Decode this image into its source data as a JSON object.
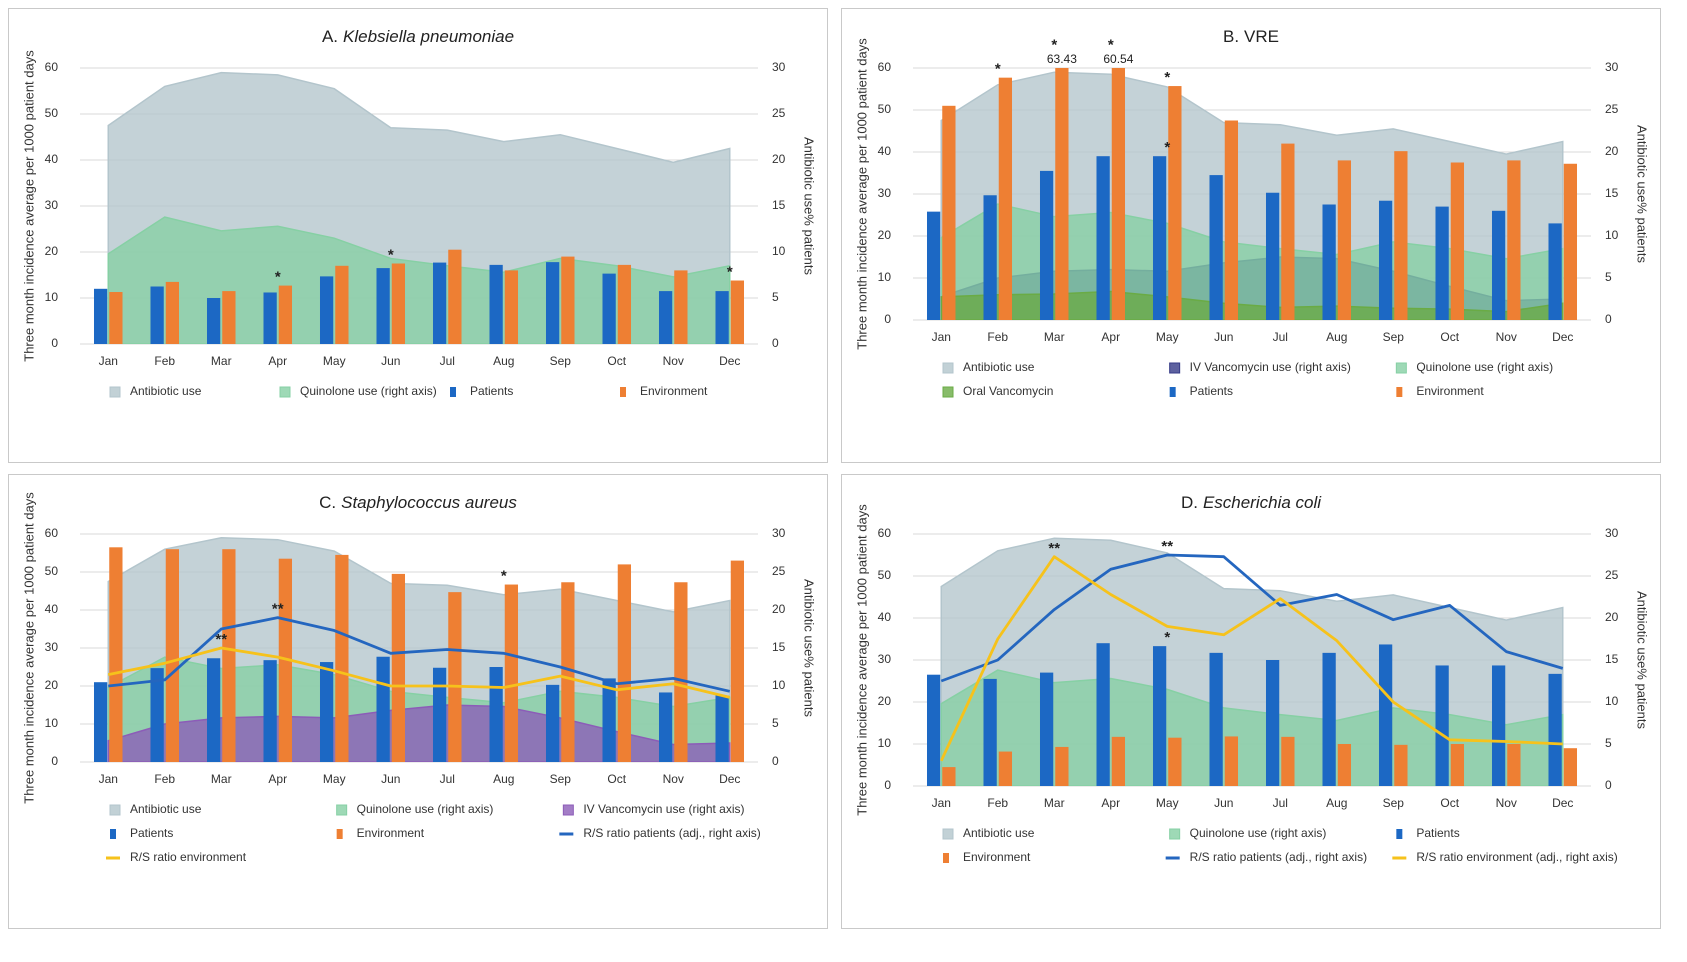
{
  "chart_data": [
    {
      "type": "combo",
      "panel": "A.",
      "title": "Klebsiella pneumoniae",
      "title_italic": true,
      "y_label": "Three month incidence average per 1000 patient days",
      "y2_label": "Antibiotic use% patients",
      "categories": [
        "Jan",
        "Feb",
        "Mar",
        "Apr",
        "May",
        "Jun",
        "Jul",
        "Aug",
        "Sep",
        "Oct",
        "Nov",
        "Dec"
      ],
      "ylim": [
        0,
        60
      ],
      "yticks": [
        0,
        10,
        20,
        30,
        40,
        50,
        60
      ],
      "y2lim": [
        0,
        30
      ],
      "y2ticks": [
        0,
        5,
        10,
        15,
        20,
        25,
        30
      ],
      "grid": true,
      "series": [
        {
          "name": "Antibiotic use",
          "type": "area",
          "color": "#b3c5cc",
          "values": [
            47.5,
            56,
            59,
            58.5,
            55.5,
            47,
            46.5,
            44,
            45.5,
            42.5,
            39.5,
            42.5
          ]
        },
        {
          "name": "Quinolone use (right axis)",
          "type": "area",
          "axis": "y2",
          "color": "#86d0a4",
          "values": [
            9.8,
            13.8,
            12.3,
            12.8,
            11.5,
            9.3,
            8.5,
            7.8,
            9.3,
            8.5,
            7.3,
            8.5
          ]
        },
        {
          "name": "Patients",
          "type": "bar",
          "color": "#1c68c4",
          "values": [
            12,
            12.5,
            10,
            11.2,
            14.7,
            16.5,
            17.7,
            17.2,
            17.8,
            15.3,
            11.5,
            11.5
          ]
        },
        {
          "name": "Environment",
          "type": "bar",
          "color": "#ee7f33",
          "values": [
            11.3,
            13.5,
            11.5,
            12.7,
            17,
            17.5,
            20.5,
            16,
            19,
            17.2,
            16,
            13.8
          ]
        }
      ],
      "annotations": [
        {
          "text": "*",
          "x": "Apr",
          "y": 12.7
        },
        {
          "text": "*",
          "x": "Jun",
          "y": 17.5
        },
        {
          "text": "*",
          "x": "Dec",
          "y": 13.8
        }
      ]
    },
    {
      "type": "combo",
      "panel": "B.",
      "title": "VRE",
      "title_italic": false,
      "y_label": "Three month incidence average per 1000 patient days",
      "y2_label": "Antibiotic use% patients",
      "categories": [
        "Jan",
        "Feb",
        "Mar",
        "Apr",
        "May",
        "Jun",
        "Jul",
        "Aug",
        "Sep",
        "Oct",
        "Nov",
        "Dec"
      ],
      "ylim": [
        0,
        60
      ],
      "yticks": [
        0,
        10,
        20,
        30,
        40,
        50,
        60
      ],
      "y2lim": [
        0,
        30
      ],
      "y2ticks": [
        0,
        5,
        10,
        15,
        20,
        25,
        30
      ],
      "grid": true,
      "series": [
        {
          "name": "Antibiotic use",
          "type": "area",
          "color": "#b3c5cc",
          "values": [
            47.5,
            56,
            59,
            58.5,
            55.5,
            47,
            46.5,
            44,
            45.5,
            42.5,
            39.5,
            42.5
          ]
        },
        {
          "name": "IV Vancomycin use (right axis)",
          "type": "area",
          "axis": "y2",
          "color": "#353a87",
          "values": [
            2.8,
            5,
            5.8,
            6,
            5.8,
            6.8,
            7.5,
            7.3,
            5.8,
            4,
            2.3,
            2.5
          ]
        },
        {
          "name": "Quinolone use (right axis)",
          "type": "area",
          "axis": "y2",
          "color": "#86d0a4",
          "values": [
            9.8,
            13.8,
            12.3,
            12.8,
            11.5,
            9.3,
            8.5,
            7.8,
            9.3,
            8.5,
            7.3,
            8.5
          ]
        },
        {
          "name": "Oral Vancomycin",
          "type": "area",
          "color": "#6aab45",
          "values": [
            5.5,
            6,
            6.2,
            6.8,
            5.5,
            4,
            3,
            3.3,
            2.8,
            2.6,
            2,
            4
          ]
        },
        {
          "name": "Patients",
          "type": "bar",
          "color": "#1c68c4",
          "values": [
            25.8,
            29.7,
            35.5,
            39,
            39,
            34.5,
            30.3,
            27.5,
            28.4,
            27,
            26,
            23
          ]
        },
        {
          "name": "Environment",
          "type": "bar",
          "color": "#ee7f33",
          "values": [
            51,
            57.7,
            63.43,
            60.54,
            55.7,
            47.5,
            42,
            38,
            40.2,
            37.5,
            38,
            37.2
          ],
          "value_labels": [
            null,
            null,
            "63.43",
            "60.54",
            null,
            null,
            null,
            null,
            null,
            null,
            null,
            null
          ]
        }
      ],
      "annotations": [
        {
          "text": "*",
          "x": "Feb",
          "y": 57.7
        },
        {
          "text": "*",
          "x": "Mar",
          "y": 63.43
        },
        {
          "text": "*",
          "x": "Apr",
          "y": 63.43
        },
        {
          "text": "*",
          "x": "May",
          "y": 55.7
        },
        {
          "text": "*",
          "x": "May",
          "y": 39
        }
      ]
    },
    {
      "type": "combo",
      "panel": "C.",
      "title": "Staphylococcus aureus",
      "title_italic": true,
      "y_label": "Three month incidence average per 1000 patient days",
      "y2_label": "Antibiotic use% patients",
      "categories": [
        "Jan",
        "Feb",
        "Mar",
        "Apr",
        "May",
        "Jun",
        "Jul",
        "Aug",
        "Sep",
        "Oct",
        "Nov",
        "Dec"
      ],
      "ylim": [
        0,
        60
      ],
      "yticks": [
        0,
        10,
        20,
        30,
        40,
        50,
        60
      ],
      "y2lim": [
        0,
        30
      ],
      "y2ticks": [
        0,
        5,
        10,
        15,
        20,
        25,
        30
      ],
      "grid": true,
      "series": [
        {
          "name": "Antibiotic use",
          "type": "area",
          "color": "#b3c5cc",
          "values": [
            47.5,
            56,
            59,
            58.5,
            55.5,
            47,
            46.5,
            44,
            45.5,
            42.5,
            39.5,
            42.5
          ]
        },
        {
          "name": "Quinolone use (right axis)",
          "type": "area",
          "axis": "y2",
          "color": "#86d0a4",
          "values": [
            9.8,
            13.8,
            12.3,
            12.8,
            11.5,
            9.3,
            8.5,
            7.8,
            9.3,
            8.5,
            7.3,
            8.5
          ]
        },
        {
          "name": "IV Vancomycin use (right axis)",
          "type": "area",
          "axis": "y2",
          "color": "#8c5cb8",
          "values": [
            2.8,
            5,
            5.8,
            6,
            5.8,
            6.8,
            7.5,
            7.3,
            5.8,
            4,
            2.3,
            2.5
          ]
        },
        {
          "name": "Patients",
          "type": "bar",
          "color": "#1c68c4",
          "values": [
            21,
            24.7,
            27.3,
            26.8,
            26.3,
            27.7,
            24.8,
            25,
            20.3,
            22,
            18.3,
            17.5
          ]
        },
        {
          "name": "Environment",
          "type": "bar",
          "color": "#ee7f33",
          "values": [
            56.5,
            56,
            56,
            53.5,
            54.5,
            49.5,
            44.7,
            46.7,
            47.3,
            52,
            47.3,
            53
          ]
        },
        {
          "name": "R/S ratio patients (adj., right axis)",
          "type": "line",
          "axis": "y2",
          "color": "#2466bf",
          "values": [
            10,
            10.8,
            17.5,
            19,
            17.3,
            14.3,
            14.8,
            14.3,
            12.5,
            10.3,
            11,
            9.3
          ]
        },
        {
          "name": "R/S ratio environment",
          "type": "line",
          "axis": "y2",
          "color": "#f6c21b",
          "values": [
            11.5,
            13,
            15,
            13.8,
            12,
            10,
            10,
            9.8,
            11.3,
            9.5,
            10.3,
            8.5
          ]
        }
      ],
      "annotations": [
        {
          "text": "**",
          "x": "Mar",
          "y": 30
        },
        {
          "text": "**",
          "x": "Apr",
          "y": 38
        },
        {
          "text": "*",
          "x": "Aug",
          "y": 46.7
        }
      ]
    },
    {
      "type": "combo",
      "panel": "D.",
      "title": "Escherichia coli",
      "title_italic": true,
      "y_label": "Three month incidence average per 1000 patient days",
      "y2_label": "Antibiotic use% patients",
      "categories": [
        "Jan",
        "Feb",
        "Mar",
        "Apr",
        "May",
        "Jun",
        "Jul",
        "Aug",
        "Sep",
        "Oct",
        "Nov",
        "Dec"
      ],
      "ylim": [
        0,
        60
      ],
      "yticks": [
        0,
        10,
        20,
        30,
        40,
        50,
        60
      ],
      "y2lim": [
        0,
        30
      ],
      "y2ticks": [
        0,
        5,
        10,
        15,
        20,
        25,
        30
      ],
      "grid": true,
      "series": [
        {
          "name": "Antibiotic use",
          "type": "area",
          "color": "#b3c5cc",
          "values": [
            47.5,
            56,
            59,
            58.5,
            55.5,
            47,
            46.5,
            44,
            45.5,
            42.5,
            39.5,
            42.5
          ]
        },
        {
          "name": "Quinolone use (right axis)",
          "type": "area",
          "axis": "y2",
          "color": "#86d0a4",
          "values": [
            9.8,
            13.8,
            12.3,
            12.8,
            11.5,
            9.3,
            8.5,
            7.8,
            9.3,
            8.5,
            7.3,
            8.5
          ]
        },
        {
          "name": "Patients",
          "type": "bar",
          "color": "#1c68c4",
          "values": [
            26.5,
            25.5,
            27,
            34,
            33.3,
            31.7,
            30,
            31.7,
            33.7,
            28.7,
            28.7,
            26.7
          ]
        },
        {
          "name": "Environment",
          "type": "bar",
          "color": "#ee7f33",
          "values": [
            4.5,
            8.2,
            9.3,
            11.7,
            11.5,
            11.8,
            11.7,
            10,
            9.8,
            10,
            10,
            9
          ]
        },
        {
          "name": "R/S ratio patients (adj., right axis)",
          "type": "line",
          "axis": "y2",
          "color": "#2466bf",
          "values": [
            12.5,
            15,
            21,
            25.8,
            27.5,
            27.3,
            21.5,
            22.8,
            19.8,
            21.5,
            16,
            14
          ]
        },
        {
          "name": "R/S ratio environment (adj., right axis)",
          "type": "line",
          "axis": "y2",
          "color": "#f6c21b",
          "values": [
            3,
            17.5,
            27.3,
            22.8,
            19,
            18,
            22.3,
            17.3,
            10,
            5.5,
            5.3,
            5
          ]
        }
      ],
      "annotations": [
        {
          "text": "**",
          "x": "Mar",
          "y": 54.5
        },
        {
          "text": "**",
          "x": "May",
          "y": 55
        },
        {
          "text": "*",
          "x": "May",
          "y": 33.3
        }
      ]
    }
  ]
}
